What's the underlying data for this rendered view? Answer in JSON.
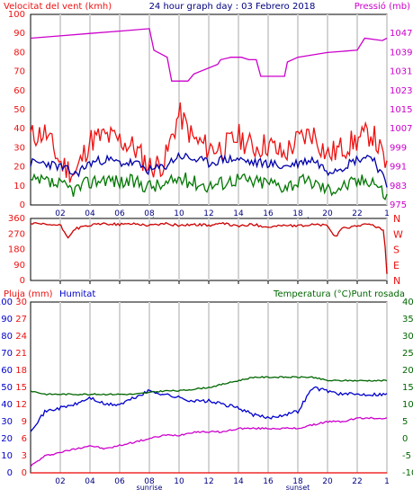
{
  "header": {
    "left": "Velocitat del vent (kmh)",
    "title": "24 hour graph day : 03 Febrero 2018",
    "right": "Pressió (mb)"
  },
  "colors": {
    "wind": "#ee1111",
    "gust": "#ee1111",
    "windavg": "#0000aa",
    "windlow": "#007700",
    "pressure": "#cc00cc",
    "direction": "#cc0000",
    "humidity": "#0000cc",
    "temperature": "#006600",
    "dewpoint": "#cc00cc",
    "rain": "#ee0000",
    "grid": "#d4d4d4",
    "frame": "#000000"
  },
  "chart_data": [
    {
      "type": "line",
      "name": "wind-pressure",
      "x_ticks": [
        "02",
        "04",
        "06",
        "08",
        "10",
        "12",
        "14",
        "16",
        "18",
        "20",
        "22",
        "1"
      ],
      "markers": {
        "sunrise": "08",
        "sunset": "18"
      },
      "left_axis": {
        "label": "Velocitat del vent (kmh)",
        "ticks": [
          "0",
          "10",
          "20",
          "30",
          "40",
          "50",
          "60",
          "70",
          "80",
          "90",
          "100"
        ],
        "ylim": [
          0,
          100
        ]
      },
      "right_axis": {
        "label": "Pressió (mb)",
        "ticks": [
          "975",
          "983",
          "991",
          "999",
          "1007",
          "1015",
          "1023",
          "1031",
          "1039",
          "1047"
        ],
        "ylim": [
          975,
          1055
        ]
      },
      "series": [
        {
          "key": "gust",
          "axis": "left",
          "x": [
            0,
            1,
            2,
            3,
            4,
            5,
            6,
            7,
            8,
            9,
            10,
            11,
            12,
            13,
            14,
            15,
            16,
            17,
            18,
            19,
            20,
            21,
            22,
            23,
            24
          ],
          "values": [
            36,
            38,
            22,
            16,
            34,
            36,
            34,
            30,
            20,
            22,
            48,
            34,
            30,
            30,
            36,
            30,
            32,
            26,
            34,
            38,
            26,
            30,
            34,
            38,
            20
          ]
        },
        {
          "key": "windavg",
          "axis": "left",
          "x": [
            0,
            1,
            2,
            3,
            4,
            5,
            6,
            7,
            8,
            9,
            10,
            11,
            12,
            13,
            14,
            15,
            16,
            17,
            18,
            19,
            20,
            21,
            22,
            23,
            24
          ],
          "values": [
            22,
            22,
            20,
            16,
            22,
            24,
            22,
            22,
            18,
            20,
            26,
            24,
            22,
            24,
            24,
            22,
            22,
            20,
            22,
            24,
            18,
            20,
            24,
            26,
            10
          ]
        },
        {
          "key": "windlow",
          "axis": "left",
          "x": [
            0,
            1,
            2,
            3,
            4,
            5,
            6,
            7,
            8,
            9,
            10,
            11,
            12,
            13,
            14,
            15,
            16,
            17,
            18,
            19,
            20,
            21,
            22,
            23,
            24
          ],
          "values": [
            12,
            12,
            10,
            8,
            12,
            14,
            12,
            12,
            10,
            10,
            14,
            12,
            10,
            12,
            14,
            12,
            12,
            10,
            12,
            12,
            8,
            10,
            12,
            14,
            4
          ]
        },
        {
          "key": "pressure",
          "axis": "right",
          "x": [
            0,
            2,
            4,
            6,
            8,
            8.3,
            9.2,
            9.5,
            10.6,
            11,
            12.6,
            12.8,
            13.5,
            14.2,
            14.7,
            15.2,
            15.5,
            17.1,
            17.3,
            18,
            20,
            22,
            22.5,
            23.7,
            24
          ],
          "values": [
            1045,
            1046,
            1047,
            1048,
            1049,
            1040,
            1037,
            1027,
            1027,
            1030,
            1034,
            1036,
            1037,
            1037,
            1036,
            1036,
            1029,
            1029,
            1035,
            1037,
            1039,
            1040,
            1045,
            1044,
            1045
          ]
        }
      ]
    },
    {
      "type": "line",
      "name": "wind-direction",
      "x_ticks": [
        "02",
        "04",
        "06",
        "08",
        "10",
        "12",
        "14",
        "16",
        "18",
        "20",
        "22",
        "1"
      ],
      "left_axis": {
        "ticks": [
          "0",
          "90",
          "180",
          "270",
          "360"
        ],
        "ylim": [
          0,
          360
        ]
      },
      "right_axis": {
        "ticks": [
          "N",
          "E",
          "S",
          "W",
          "N"
        ]
      },
      "series": [
        {
          "key": "direction",
          "x": [
            0,
            1,
            2,
            2.5,
            3,
            4,
            5,
            6,
            7,
            8,
            9,
            10,
            11,
            12,
            13,
            14,
            15,
            16,
            17,
            18,
            19,
            20,
            20.5,
            21,
            22,
            23,
            23.8,
            24
          ],
          "values": [
            330,
            325,
            320,
            250,
            300,
            320,
            330,
            325,
            330,
            320,
            330,
            320,
            325,
            320,
            330,
            315,
            325,
            310,
            320,
            315,
            325,
            320,
            250,
            300,
            320,
            325,
            290,
            40
          ]
        }
      ]
    },
    {
      "type": "line",
      "name": "humidity-temperature",
      "x_ticks": [
        "02",
        "04",
        "06",
        "08",
        "10",
        "12",
        "14",
        "16",
        "18",
        "20",
        "22",
        "1"
      ],
      "markers": {
        "sunrise": "08",
        "sunset": "18"
      },
      "left_axis": {
        "label": "Pluja (mm)",
        "ticks": [
          "0",
          "3",
          "6",
          "9",
          "12",
          "15",
          "18",
          "21",
          "24",
          "27",
          "30"
        ],
        "ylim": [
          0,
          30
        ]
      },
      "left_axis2": {
        "label": "Humitat",
        "ticks": [
          "0",
          "10",
          "20",
          "30",
          "40",
          "50",
          "60",
          "70",
          "80",
          "90",
          "100"
        ],
        "ylim": [
          0,
          100
        ]
      },
      "right_axis": {
        "label": "Temperatura (°C)Punt rosada",
        "ticks": [
          "-10",
          "-5",
          "0",
          "5",
          "10",
          "15",
          "20",
          "25",
          "30",
          "35",
          "40"
        ],
        "ylim": [
          -10,
          40
        ]
      },
      "series": [
        {
          "key": "rain",
          "axis": "left",
          "x": [
            0,
            24
          ],
          "values": [
            0,
            0
          ]
        },
        {
          "key": "humidity",
          "axis": "left2",
          "x": [
            0,
            1,
            2,
            3,
            4,
            5,
            6,
            7,
            8,
            9,
            10,
            11,
            12,
            13,
            14,
            15,
            16,
            17,
            18,
            19,
            20,
            21,
            22,
            23,
            24
          ],
          "values": [
            25,
            36,
            38,
            40,
            44,
            40,
            40,
            44,
            48,
            46,
            44,
            42,
            42,
            40,
            38,
            34,
            32,
            34,
            36,
            50,
            48,
            46,
            46,
            46,
            46
          ]
        },
        {
          "key": "temperature",
          "axis": "right",
          "x": [
            0,
            1,
            2,
            3,
            4,
            5,
            6,
            7,
            8,
            9,
            10,
            11,
            12,
            13,
            14,
            15,
            16,
            17,
            18,
            19,
            20,
            21,
            22,
            23,
            24
          ],
          "values": [
            14,
            13,
            13,
            13,
            13,
            13,
            13,
            13,
            13.5,
            14,
            14,
            14.5,
            15,
            16,
            17,
            18,
            18,
            18,
            18,
            18,
            17,
            17,
            17,
            17,
            17
          ]
        },
        {
          "key": "dewpoint",
          "axis": "right",
          "x": [
            0,
            1,
            2,
            3,
            4,
            5,
            6,
            7,
            8,
            9,
            10,
            11,
            12,
            13,
            14,
            15,
            16,
            17,
            18,
            19,
            20,
            21,
            22,
            23,
            24
          ],
          "values": [
            -8,
            -5,
            -4,
            -3,
            -2,
            -3,
            -2,
            -1,
            0,
            1,
            1,
            2,
            2,
            2,
            3,
            3,
            3,
            3,
            3,
            4,
            5,
            5,
            6,
            6,
            6
          ]
        }
      ]
    }
  ]
}
